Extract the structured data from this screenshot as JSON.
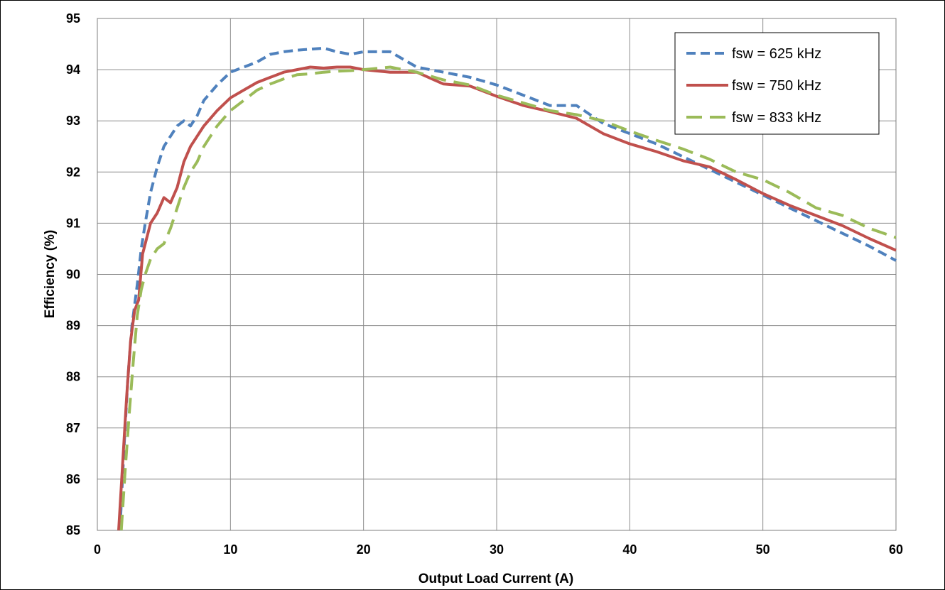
{
  "chart_data": {
    "type": "line",
    "title": "",
    "xlabel": "Output Load Current (A)",
    "ylabel": "Efficiency (%)",
    "xlim": [
      0,
      60
    ],
    "ylim": [
      85,
      95
    ],
    "xticks": [
      0,
      10,
      20,
      30,
      40,
      50,
      60
    ],
    "yticks": [
      85,
      86,
      87,
      88,
      89,
      90,
      91,
      92,
      93,
      94,
      95
    ],
    "grid": true,
    "legend_position": "top-right",
    "series": [
      {
        "name": "fsw = 625 kHz",
        "color": "#4f81bd",
        "style": "dashed",
        "points": [
          [
            1.7,
            85.0
          ],
          [
            2.0,
            86.6
          ],
          [
            2.3,
            88.0
          ],
          [
            2.6,
            89.0
          ],
          [
            3.0,
            89.8
          ],
          [
            3.3,
            90.5
          ],
          [
            3.6,
            91.0
          ],
          [
            4.0,
            91.6
          ],
          [
            4.5,
            92.1
          ],
          [
            5.0,
            92.5
          ],
          [
            5.5,
            92.7
          ],
          [
            6.0,
            92.9
          ],
          [
            6.5,
            93.0
          ],
          [
            7.0,
            92.9
          ],
          [
            7.5,
            93.1
          ],
          [
            8.0,
            93.4
          ],
          [
            9.0,
            93.7
          ],
          [
            10.0,
            93.95
          ],
          [
            11.0,
            94.05
          ],
          [
            12.0,
            94.15
          ],
          [
            13.0,
            94.3
          ],
          [
            14.0,
            94.35
          ],
          [
            15.0,
            94.38
          ],
          [
            16.0,
            94.4
          ],
          [
            17.0,
            94.42
          ],
          [
            18.0,
            94.35
          ],
          [
            19.0,
            94.3
          ],
          [
            20.0,
            94.35
          ],
          [
            22.0,
            94.35
          ],
          [
            24.0,
            94.05
          ],
          [
            26.0,
            93.95
          ],
          [
            28.0,
            93.85
          ],
          [
            30.0,
            93.7
          ],
          [
            32.0,
            93.5
          ],
          [
            34.0,
            93.3
          ],
          [
            36.0,
            93.3
          ],
          [
            38.0,
            92.95
          ],
          [
            40.0,
            92.75
          ],
          [
            42.0,
            92.55
          ],
          [
            44.0,
            92.3
          ],
          [
            46.0,
            92.05
          ],
          [
            48.0,
            91.8
          ],
          [
            50.0,
            91.55
          ],
          [
            52.0,
            91.3
          ],
          [
            54.0,
            91.05
          ],
          [
            56.0,
            90.8
          ],
          [
            58.0,
            90.55
          ],
          [
            60.0,
            90.27
          ]
        ]
      },
      {
        "name": "fsw = 750 kHz",
        "color": "#c0504d",
        "style": "solid",
        "points": [
          [
            1.6,
            85.0
          ],
          [
            1.9,
            86.3
          ],
          [
            2.2,
            87.6
          ],
          [
            2.5,
            88.7
          ],
          [
            2.8,
            89.3
          ],
          [
            3.1,
            89.5
          ],
          [
            3.4,
            90.4
          ],
          [
            3.7,
            90.7
          ],
          [
            4.0,
            91.0
          ],
          [
            4.5,
            91.2
          ],
          [
            5.0,
            91.5
          ],
          [
            5.5,
            91.4
          ],
          [
            6.0,
            91.7
          ],
          [
            6.5,
            92.2
          ],
          [
            7.0,
            92.5
          ],
          [
            7.5,
            92.7
          ],
          [
            8.0,
            92.9
          ],
          [
            9.0,
            93.2
          ],
          [
            10.0,
            93.45
          ],
          [
            11.0,
            93.6
          ],
          [
            12.0,
            93.75
          ],
          [
            13.0,
            93.85
          ],
          [
            14.0,
            93.95
          ],
          [
            15.0,
            94.0
          ],
          [
            16.0,
            94.05
          ],
          [
            17.0,
            94.03
          ],
          [
            18.0,
            94.05
          ],
          [
            19.0,
            94.05
          ],
          [
            20.0,
            94.0
          ],
          [
            22.0,
            93.95
          ],
          [
            24.0,
            93.95
          ],
          [
            26.0,
            93.72
          ],
          [
            28.0,
            93.68
          ],
          [
            30.0,
            93.48
          ],
          [
            32.0,
            93.3
          ],
          [
            34.0,
            93.18
          ],
          [
            36.0,
            93.05
          ],
          [
            38.0,
            92.75
          ],
          [
            40.0,
            92.55
          ],
          [
            42.0,
            92.4
          ],
          [
            44.0,
            92.22
          ],
          [
            46.0,
            92.1
          ],
          [
            48.0,
            91.85
          ],
          [
            50.0,
            91.58
          ],
          [
            52.0,
            91.35
          ],
          [
            54.0,
            91.15
          ],
          [
            56.0,
            90.95
          ],
          [
            58.0,
            90.7
          ],
          [
            60.0,
            90.47
          ]
        ]
      },
      {
        "name": "fsw = 833 kHz",
        "color": "#9bbb59",
        "style": "longdash",
        "points": [
          [
            1.8,
            85.0
          ],
          [
            2.1,
            86.2
          ],
          [
            2.4,
            87.3
          ],
          [
            2.7,
            88.3
          ],
          [
            3.0,
            89.2
          ],
          [
            3.3,
            89.7
          ],
          [
            3.6,
            90.0
          ],
          [
            4.0,
            90.3
          ],
          [
            4.5,
            90.5
          ],
          [
            5.0,
            90.6
          ],
          [
            5.5,
            90.9
          ],
          [
            6.0,
            91.3
          ],
          [
            6.5,
            91.7
          ],
          [
            7.0,
            92.0
          ],
          [
            7.5,
            92.2
          ],
          [
            8.0,
            92.5
          ],
          [
            9.0,
            92.9
          ],
          [
            10.0,
            93.2
          ],
          [
            11.0,
            93.4
          ],
          [
            12.0,
            93.6
          ],
          [
            13.0,
            93.72
          ],
          [
            14.0,
            93.82
          ],
          [
            15.0,
            93.9
          ],
          [
            16.0,
            93.92
          ],
          [
            17.0,
            93.95
          ],
          [
            18.0,
            93.97
          ],
          [
            19.0,
            93.98
          ],
          [
            20.0,
            94.0
          ],
          [
            22.0,
            94.05
          ],
          [
            24.0,
            93.95
          ],
          [
            26.0,
            93.8
          ],
          [
            28.0,
            93.7
          ],
          [
            30.0,
            93.5
          ],
          [
            32.0,
            93.35
          ],
          [
            34.0,
            93.2
          ],
          [
            36.0,
            93.12
          ],
          [
            38.0,
            93.0
          ],
          [
            40.0,
            92.8
          ],
          [
            42.0,
            92.62
          ],
          [
            44.0,
            92.45
          ],
          [
            46.0,
            92.25
          ],
          [
            48.0,
            92.0
          ],
          [
            50.0,
            91.85
          ],
          [
            52.0,
            91.6
          ],
          [
            54.0,
            91.3
          ],
          [
            56.0,
            91.15
          ],
          [
            58.0,
            90.9
          ],
          [
            60.0,
            90.72
          ]
        ]
      }
    ]
  }
}
